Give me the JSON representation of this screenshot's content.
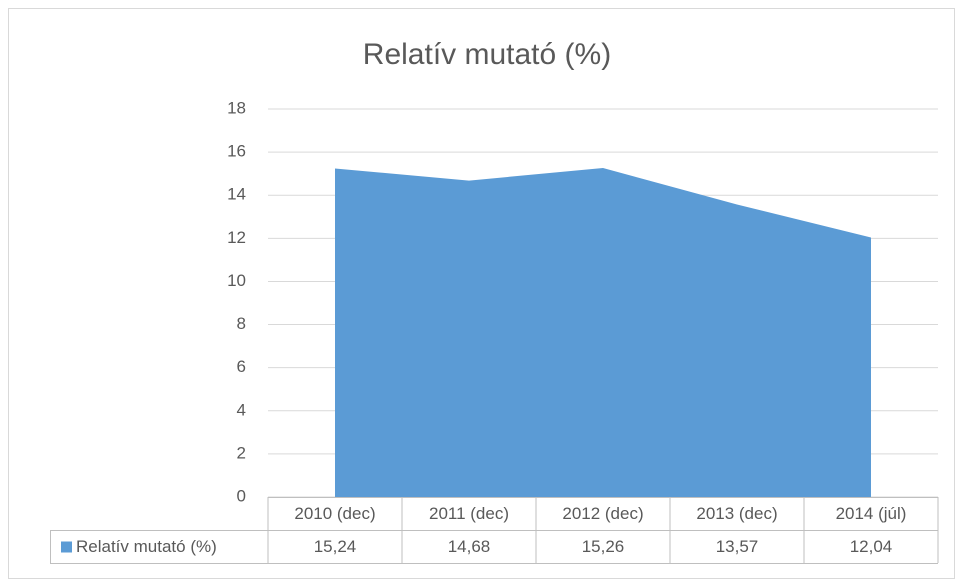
{
  "chart_data": {
    "type": "area",
    "title": "Relatív mutató (%)",
    "categories": [
      "2010 (dec)",
      "2011 (dec)",
      "2012 (dec)",
      "2013 (dec)",
      "2014 (júl)"
    ],
    "series": [
      {
        "name": "Relatív mutató (%)",
        "color": "#5b9bd5",
        "values": [
          15.24,
          14.68,
          15.26,
          13.57,
          12.04
        ],
        "value_labels": [
          "15,24",
          "14,68",
          "15,26",
          "13,57",
          "12,04"
        ]
      }
    ],
    "ylim": [
      0,
      18
    ],
    "yticks": [
      0,
      2,
      4,
      6,
      8,
      10,
      12,
      14,
      16,
      18
    ],
    "grid": true,
    "data_table": true
  }
}
